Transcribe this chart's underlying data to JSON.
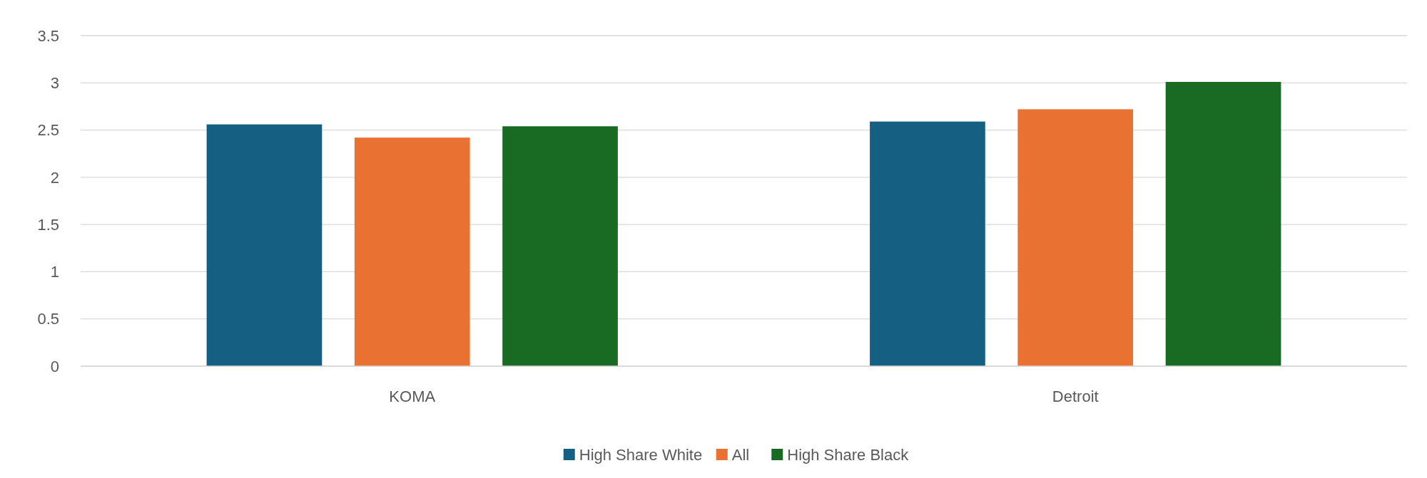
{
  "chart_data": {
    "type": "bar",
    "categories": [
      "KOMA",
      "Detroit"
    ],
    "series": [
      {
        "name": "High Share White",
        "color": "#156082",
        "values": [
          2.56,
          2.59
        ]
      },
      {
        "name": "All",
        "color": "#e97132",
        "values": [
          2.42,
          2.72
        ]
      },
      {
        "name": "High Share Black",
        "color": "#196b24",
        "values": [
          2.54,
          3.01
        ]
      }
    ],
    "ylim": [
      0,
      3.5
    ],
    "yticks": [
      0,
      0.5,
      1,
      1.5,
      2,
      2.5,
      3,
      3.5
    ],
    "grid": "y",
    "legend": "bottom"
  }
}
